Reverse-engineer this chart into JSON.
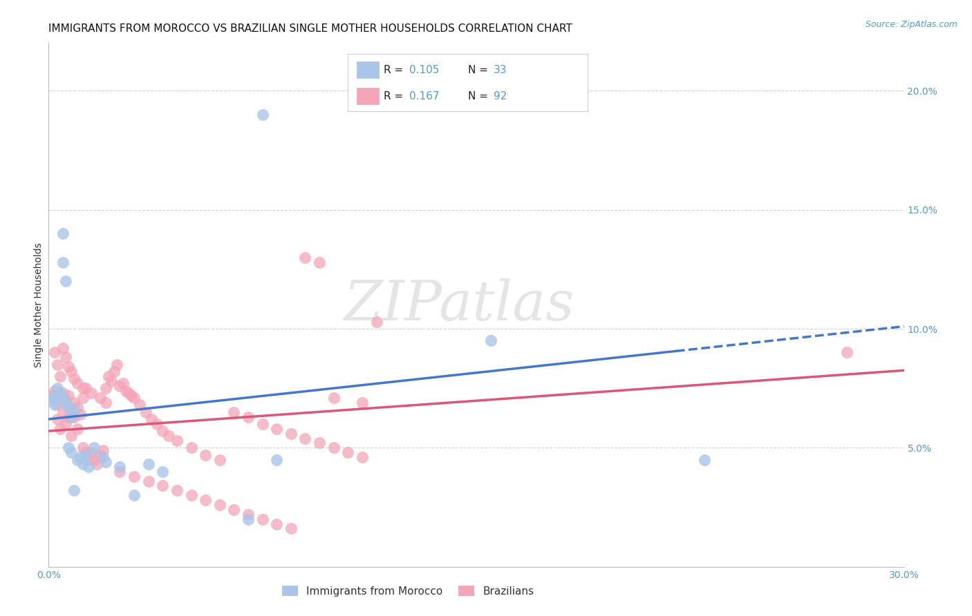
{
  "title": "IMMIGRANTS FROM MOROCCO VS BRAZILIAN SINGLE MOTHER HOUSEHOLDS CORRELATION CHART",
  "source": "Source: ZipAtlas.com",
  "ylabel": "Single Mother Households",
  "xlim": [
    0.0,
    0.3
  ],
  "ylim": [
    0.0,
    0.22
  ],
  "x_tick_positions": [
    0.0,
    0.05,
    0.1,
    0.15,
    0.2,
    0.25,
    0.3
  ],
  "x_tick_labels": [
    "0.0%",
    "",
    "",
    "",
    "",
    "",
    "30.0%"
  ],
  "y_tick_positions": [
    0.0,
    0.05,
    0.1,
    0.15,
    0.2
  ],
  "y_tick_labels": [
    "",
    "5.0%",
    "10.0%",
    "15.0%",
    "20.0%"
  ],
  "morocco_R": 0.105,
  "morocco_N": 33,
  "brazil_R": 0.167,
  "brazil_N": 92,
  "morocco_color": "#aac5e8",
  "brazil_color": "#f4a5b8",
  "morocco_line_color": "#4477cc",
  "brazil_line_color": "#dd5577",
  "watermark_text": "ZIPatlas",
  "legend_labels": [
    "Immigrants from Morocco",
    "Brazilians"
  ],
  "background_color": "#ffffff",
  "grid_color": "#cccccc",
  "title_fontsize": 11,
  "tick_label_color": "#5599cc",
  "tick_label_fontsize": 10,
  "source_color": "#5599cc",
  "morocco_x": [
    0.001,
    0.002,
    0.002,
    0.003,
    0.004,
    0.005,
    0.005,
    0.006,
    0.007,
    0.008,
    0.009,
    0.01,
    0.011,
    0.012,
    0.013,
    0.014,
    0.016,
    0.019,
    0.02,
    0.025,
    0.03,
    0.035,
    0.04,
    0.07,
    0.08,
    0.005,
    0.006,
    0.007,
    0.008,
    0.009,
    0.155,
    0.23,
    0.075
  ],
  "morocco_y": [
    0.07,
    0.072,
    0.068,
    0.075,
    0.073,
    0.071,
    0.14,
    0.069,
    0.067,
    0.063,
    0.066,
    0.045,
    0.046,
    0.043,
    0.047,
    0.042,
    0.05,
    0.046,
    0.044,
    0.042,
    0.03,
    0.043,
    0.04,
    0.02,
    0.045,
    0.128,
    0.12,
    0.05,
    0.048,
    0.032,
    0.095,
    0.045,
    0.19
  ],
  "brazil_x": [
    0.001,
    0.002,
    0.003,
    0.003,
    0.004,
    0.004,
    0.005,
    0.005,
    0.006,
    0.006,
    0.007,
    0.007,
    0.008,
    0.008,
    0.009,
    0.009,
    0.01,
    0.01,
    0.011,
    0.012,
    0.012,
    0.013,
    0.013,
    0.014,
    0.015,
    0.016,
    0.017,
    0.018,
    0.019,
    0.02,
    0.021,
    0.022,
    0.023,
    0.024,
    0.025,
    0.026,
    0.027,
    0.028,
    0.029,
    0.03,
    0.032,
    0.034,
    0.036,
    0.038,
    0.04,
    0.042,
    0.045,
    0.05,
    0.055,
    0.06,
    0.065,
    0.07,
    0.075,
    0.08,
    0.085,
    0.09,
    0.095,
    0.1,
    0.105,
    0.11,
    0.002,
    0.003,
    0.004,
    0.005,
    0.006,
    0.007,
    0.008,
    0.009,
    0.01,
    0.012,
    0.015,
    0.018,
    0.02,
    0.025,
    0.03,
    0.035,
    0.04,
    0.045,
    0.05,
    0.055,
    0.06,
    0.065,
    0.07,
    0.075,
    0.08,
    0.085,
    0.09,
    0.095,
    0.1,
    0.11,
    0.115,
    0.28
  ],
  "brazil_y": [
    0.072,
    0.074,
    0.068,
    0.062,
    0.071,
    0.058,
    0.065,
    0.073,
    0.07,
    0.06,
    0.063,
    0.072,
    0.066,
    0.055,
    0.069,
    0.063,
    0.067,
    0.058,
    0.064,
    0.071,
    0.05,
    0.048,
    0.075,
    0.045,
    0.048,
    0.045,
    0.043,
    0.047,
    0.049,
    0.075,
    0.08,
    0.078,
    0.082,
    0.085,
    0.076,
    0.077,
    0.074,
    0.073,
    0.072,
    0.071,
    0.068,
    0.065,
    0.062,
    0.06,
    0.057,
    0.055,
    0.053,
    0.05,
    0.047,
    0.045,
    0.065,
    0.063,
    0.06,
    0.058,
    0.056,
    0.054,
    0.052,
    0.05,
    0.048,
    0.046,
    0.09,
    0.085,
    0.08,
    0.092,
    0.088,
    0.084,
    0.082,
    0.079,
    0.077,
    0.075,
    0.073,
    0.071,
    0.069,
    0.04,
    0.038,
    0.036,
    0.034,
    0.032,
    0.03,
    0.028,
    0.026,
    0.024,
    0.022,
    0.02,
    0.018,
    0.016,
    0.13,
    0.128,
    0.071,
    0.069,
    0.103,
    0.09
  ],
  "legend_R_label": "R = ",
  "legend_N_label": "N = "
}
